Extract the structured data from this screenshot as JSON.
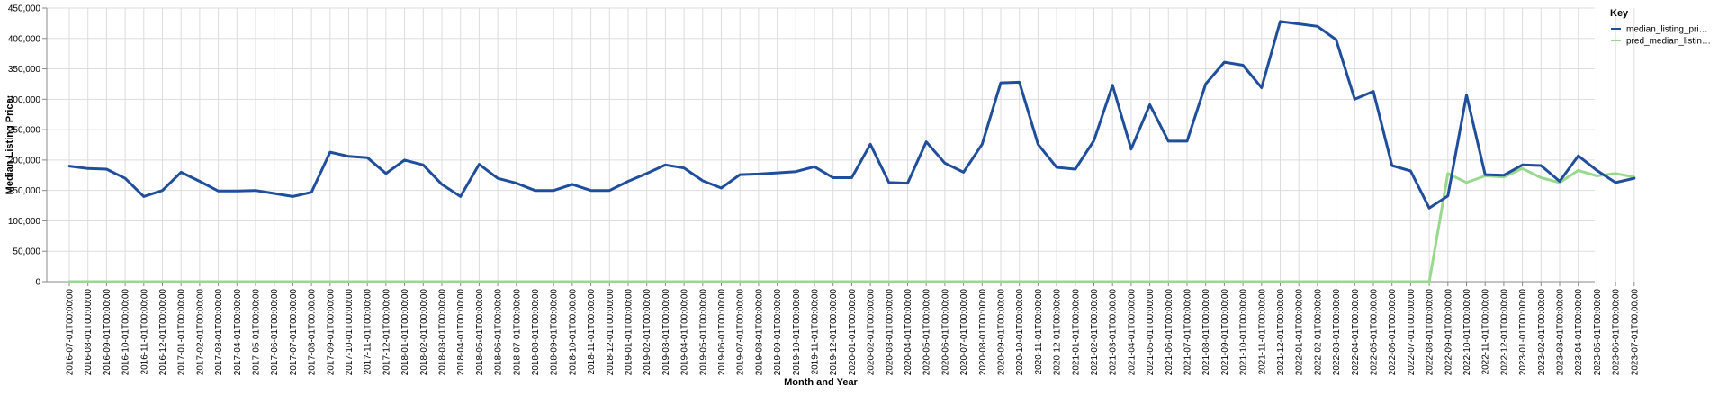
{
  "chart_data": {
    "type": "line",
    "xlabel": "Month and Year",
    "ylabel": "Median Listing Price:",
    "ylim": [
      0,
      450000
    ],
    "y_ticks": [
      0,
      50000,
      100000,
      150000,
      200000,
      250000,
      300000,
      350000,
      400000,
      450000
    ],
    "grid": true,
    "legend": {
      "title": "Key",
      "placement": "top-right"
    },
    "x": [
      "2016-07-01T00:00:00",
      "2016-08-01T00:00:00",
      "2016-09-01T00:00:00",
      "2016-10-01T00:00:00",
      "2016-11-01T00:00:00",
      "2016-12-01T00:00:00",
      "2017-01-01T00:00:00",
      "2017-02-01T00:00:00",
      "2017-03-01T00:00:00",
      "2017-04-01T00:00:00",
      "2017-05-01T00:00:00",
      "2017-06-01T00:00:00",
      "2017-07-01T00:00:00",
      "2017-08-01T00:00:00",
      "2017-09-01T00:00:00",
      "2017-10-01T00:00:00",
      "2017-11-01T00:00:00",
      "2017-12-01T00:00:00",
      "2018-01-01T00:00:00",
      "2018-02-01T00:00:00",
      "2018-03-01T00:00:00",
      "2018-04-01T00:00:00",
      "2018-05-01T00:00:00",
      "2018-06-01T00:00:00",
      "2018-07-01T00:00:00",
      "2018-08-01T00:00:00",
      "2018-09-01T00:00:00",
      "2018-10-01T00:00:00",
      "2018-11-01T00:00:00",
      "2018-12-01T00:00:00",
      "2019-01-01T00:00:00",
      "2019-02-01T00:00:00",
      "2019-03-01T00:00:00",
      "2019-04-01T00:00:00",
      "2019-05-01T00:00:00",
      "2019-06-01T00:00:00",
      "2019-07-01T00:00:00",
      "2019-08-01T00:00:00",
      "2019-09-01T00:00:00",
      "2019-10-01T00:00:00",
      "2019-11-01T00:00:00",
      "2019-12-01T00:00:00",
      "2020-01-01T00:00:00",
      "2020-02-01T00:00:00",
      "2020-03-01T00:00:00",
      "2020-04-01T00:00:00",
      "2020-05-01T00:00:00",
      "2020-06-01T00:00:00",
      "2020-07-01T00:00:00",
      "2020-08-01T00:00:00",
      "2020-09-01T00:00:00",
      "2020-10-01T00:00:00",
      "2020-11-01T00:00:00",
      "2020-12-01T00:00:00",
      "2021-01-01T00:00:00",
      "2021-02-01T00:00:00",
      "2021-03-01T00:00:00",
      "2021-04-01T00:00:00",
      "2021-05-01T00:00:00",
      "2021-06-01T00:00:00",
      "2021-07-01T00:00:00",
      "2021-08-01T00:00:00",
      "2021-09-01T00:00:00",
      "2021-10-01T00:00:00",
      "2021-11-01T00:00:00",
      "2021-12-01T00:00:00",
      "2022-01-01T00:00:00",
      "2022-02-01T00:00:00",
      "2022-03-01T00:00:00",
      "2022-04-01T00:00:00",
      "2022-05-01T00:00:00",
      "2022-06-01T00:00:00",
      "2022-07-01T00:00:00",
      "2022-08-01T00:00:00",
      "2022-09-01T00:00:00",
      "2022-10-01T00:00:00",
      "2022-11-01T00:00:00",
      "2022-12-01T00:00:00",
      "2023-01-01T00:00:00",
      "2023-02-01T00:00:00",
      "2023-03-01T00:00:00",
      "2023-04-01T00:00:00",
      "2023-05-01T00:00:00",
      "2023-06-01T00:00:00",
      "2023-07-01T00:00:00"
    ],
    "series": [
      {
        "name": "median_listing_pri…",
        "color": "#1f4e9c",
        "values": [
          190000,
          186000,
          185000,
          170000,
          140000,
          150000,
          180000,
          165000,
          149000,
          149000,
          150000,
          145000,
          140000,
          147000,
          213000,
          206000,
          204000,
          178000,
          200000,
          192000,
          160000,
          140000,
          193000,
          170000,
          162000,
          150000,
          150000,
          160000,
          150000,
          150000,
          165000,
          178000,
          192000,
          187000,
          166000,
          154000,
          176000,
          177000,
          179000,
          181000,
          189000,
          171000,
          171000,
          226000,
          163000,
          162000,
          230000,
          195000,
          180000,
          226000,
          327000,
          328000,
          226000,
          188000,
          185000,
          232000,
          323000,
          218000,
          291000,
          231000,
          231000,
          325000,
          361000,
          356000,
          319000,
          428000,
          424000,
          420000,
          398000,
          300000,
          313000,
          191000,
          182000,
          121000,
          141000,
          307000,
          176000,
          175000,
          192000,
          191000,
          165000,
          207000,
          183000,
          163000,
          170000
        ]
      },
      {
        "name": "pred_median_listin…",
        "color": "#98d98e",
        "values": [
          0,
          0,
          0,
          0,
          0,
          0,
          0,
          0,
          0,
          0,
          0,
          0,
          0,
          0,
          0,
          0,
          0,
          0,
          0,
          0,
          0,
          0,
          0,
          0,
          0,
          0,
          0,
          0,
          0,
          0,
          0,
          0,
          0,
          0,
          0,
          0,
          0,
          0,
          0,
          0,
          0,
          0,
          0,
          0,
          0,
          0,
          0,
          0,
          0,
          0,
          0,
          0,
          0,
          0,
          0,
          0,
          0,
          0,
          0,
          0,
          0,
          0,
          0,
          0,
          0,
          0,
          0,
          0,
          0,
          0,
          0,
          0,
          0,
          0,
          178000,
          163000,
          174000,
          172000,
          186000,
          171000,
          163000,
          183000,
          174000,
          178000,
          172000
        ]
      }
    ]
  }
}
